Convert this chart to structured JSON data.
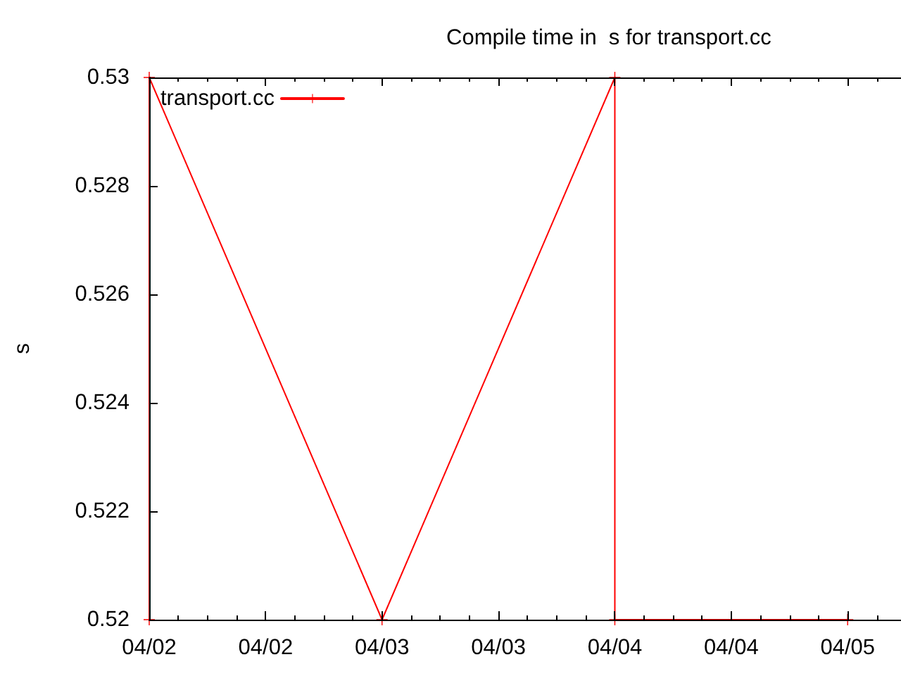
{
  "chart_data": {
    "type": "line",
    "title": "Compile time in  s for transport.cc",
    "ylabel": "s",
    "x": [
      "--04-02",
      "--04-02",
      "--04-03",
      "--04-04",
      "--04-04",
      "--04-05"
    ],
    "series": [
      {
        "name": "transport.cc",
        "color": "#ff0000",
        "values": [
          0.52,
          0.53,
          0.52,
          0.53,
          0.52,
          0.52
        ]
      }
    ],
    "xlim": [
      "--04-02",
      "--04-05T05:30"
    ],
    "xticks": [
      {
        "value": "--04-02",
        "label": "04/02"
      },
      {
        "value": "--04-02T03:00",
        "label": null
      },
      {
        "value": "--04-02T06:00",
        "label": null
      },
      {
        "value": "--04-02T09:00",
        "label": null
      },
      {
        "value": "--04-02T12:00",
        "label": "04/02"
      },
      {
        "value": "--04-02T15:00",
        "label": null
      },
      {
        "value": "--04-02T18:00",
        "label": null
      },
      {
        "value": "--04-02T21:00",
        "label": null
      },
      {
        "value": "--04-03",
        "label": "04/03"
      },
      {
        "value": "--04-03T03:00",
        "label": null
      },
      {
        "value": "--04-03T06:00",
        "label": null
      },
      {
        "value": "--04-03T09:00",
        "label": null
      },
      {
        "value": "--04-03T12:00",
        "label": "04/03"
      },
      {
        "value": "--04-03T15:00",
        "label": null
      },
      {
        "value": "--04-03T18:00",
        "label": null
      },
      {
        "value": "--04-03T21:00",
        "label": null
      },
      {
        "value": "--04-04",
        "label": "04/04"
      },
      {
        "value": "--04-04T03:00",
        "label": null
      },
      {
        "value": "--04-04T06:00",
        "label": null
      },
      {
        "value": "--04-04T09:00",
        "label": null
      },
      {
        "value": "--04-04T12:00",
        "label": "04/04"
      },
      {
        "value": "--04-04T15:00",
        "label": null
      },
      {
        "value": "--04-04T18:00",
        "label": null
      },
      {
        "value": "--04-04T21:00",
        "label": null
      },
      {
        "value": "--04-05",
        "label": "04/05"
      },
      {
        "value": "--04-05T03:00",
        "label": null
      }
    ],
    "ylim": [
      0.52,
      0.53
    ],
    "yticks": [
      0.52,
      0.522,
      0.524,
      0.526,
      0.528,
      0.53
    ],
    "grid": false,
    "legend": "top left",
    "marker": "cross",
    "line_style": "solid"
  }
}
